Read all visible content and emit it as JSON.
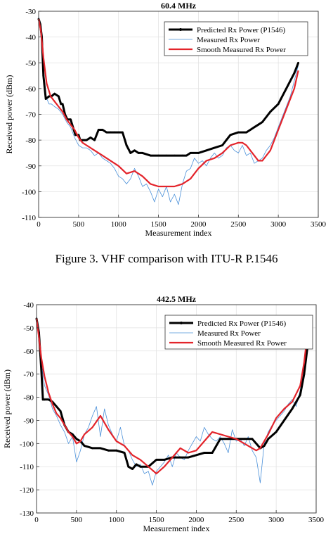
{
  "caption": "Figure 3.    VHF comparison with ITU-R P.1546",
  "chart_data": [
    {
      "type": "line",
      "title": "60.4 MHz",
      "xlabel": "Measurement index",
      "ylabel": "Received power (dBm)",
      "xlim": [
        0,
        3500
      ],
      "ylim": [
        -110,
        -30
      ],
      "xticks": [
        0,
        500,
        1000,
        1500,
        2000,
        2500,
        3000,
        3500
      ],
      "yticks": [
        -30,
        -40,
        -50,
        -60,
        -70,
        -80,
        -90,
        -100,
        -110
      ],
      "grid": true,
      "legend_position": "top-right",
      "series": [
        {
          "name": "Predicted Rx Power (P1546)",
          "color": "#000000",
          "x": [
            0,
            20,
            40,
            60,
            90,
            130,
            160,
            200,
            250,
            280,
            300,
            330,
            360,
            400,
            430,
            460,
            500,
            520,
            600,
            650,
            700,
            750,
            800,
            850,
            900,
            950,
            1000,
            1050,
            1080,
            1100,
            1150,
            1200,
            1250,
            1300,
            1400,
            1500,
            1600,
            1700,
            1800,
            1850,
            1900,
            2000,
            2100,
            2200,
            2300,
            2350,
            2400,
            2500,
            2600,
            2650,
            2700,
            2750,
            2800,
            2900,
            3000,
            3100,
            3200,
            3250
          ],
          "y": [
            -33,
            -35,
            -40,
            -55,
            -64,
            -63,
            -63,
            -62,
            -63,
            -66,
            -66,
            -70,
            -72,
            -72,
            -75,
            -78,
            -78,
            -80,
            -80,
            -79,
            -80,
            -76,
            -76,
            -77,
            -77,
            -77,
            -77,
            -77,
            -80,
            -82,
            -85,
            -84,
            -85,
            -85,
            -86,
            -86,
            -86,
            -86,
            -86,
            -86,
            -85,
            -85,
            -84,
            -83,
            -82,
            -80,
            -78,
            -77,
            -77,
            -76,
            -75,
            -74,
            -73,
            -69,
            -66,
            -60,
            -54,
            -50
          ]
        },
        {
          "name": "Measured Rx Power",
          "color": "#4a90d9",
          "x": [
            0,
            20,
            40,
            60,
            90,
            130,
            160,
            200,
            250,
            300,
            350,
            400,
            450,
            500,
            550,
            600,
            650,
            700,
            750,
            800,
            850,
            900,
            950,
            1000,
            1050,
            1100,
            1150,
            1200,
            1250,
            1300,
            1350,
            1400,
            1450,
            1500,
            1550,
            1600,
            1650,
            1700,
            1750,
            1800,
            1850,
            1900,
            1950,
            2000,
            2050,
            2100,
            2150,
            2200,
            2250,
            2300,
            2350,
            2400,
            2450,
            2500,
            2550,
            2600,
            2650,
            2700,
            2750,
            2800,
            2850,
            2900,
            2950,
            3000,
            3050,
            3100,
            3150,
            3200,
            3250
          ],
          "y": [
            -32,
            -36,
            -42,
            -56,
            -63,
            -66,
            -66,
            -67,
            -68,
            -70,
            -73,
            -75,
            -79,
            -82,
            -83,
            -83,
            -84,
            -86,
            -85,
            -87,
            -88,
            -89,
            -91,
            -94,
            -95,
            -97,
            -95,
            -91,
            -94,
            -98,
            -97,
            -100,
            -104,
            -99,
            -102,
            -98,
            -104,
            -101,
            -105,
            -97,
            -92,
            -91,
            -87,
            -89,
            -88,
            -90,
            -87,
            -85,
            -87,
            -86,
            -83,
            -82,
            -84,
            -85,
            -82,
            -86,
            -85,
            -89,
            -88,
            -87,
            -84,
            -82,
            -79,
            -75,
            -71,
            -67,
            -63,
            -57,
            -51
          ]
        },
        {
          "name": "Smooth Measured Rx Power",
          "color": "#e3242b",
          "x": [
            0,
            30,
            60,
            100,
            150,
            200,
            250,
            300,
            350,
            400,
            450,
            500,
            550,
            600,
            700,
            800,
            900,
            1000,
            1100,
            1200,
            1300,
            1400,
            1500,
            1600,
            1700,
            1800,
            1900,
            2000,
            2100,
            2200,
            2300,
            2400,
            2500,
            2550,
            2600,
            2700,
            2750,
            2800,
            2900,
            3000,
            3100,
            3200,
            3250
          ],
          "y": [
            -33,
            -38,
            -48,
            -58,
            -63,
            -65,
            -67,
            -69,
            -72,
            -74,
            -76,
            -79,
            -81,
            -82,
            -84,
            -86,
            -88,
            -90,
            -93,
            -92,
            -94,
            -97,
            -98,
            -98,
            -98,
            -97,
            -95,
            -91,
            -88,
            -87,
            -85,
            -82,
            -81,
            -81,
            -82,
            -86,
            -88,
            -88,
            -84,
            -76,
            -68,
            -60,
            -53
          ]
        }
      ]
    },
    {
      "type": "line",
      "title": "442.5 MHz",
      "xlabel": "Measurement index",
      "ylabel": "Received power (dBm)",
      "xlim": [
        0,
        3500
      ],
      "ylim": [
        -130,
        -40
      ],
      "xticks": [
        0,
        500,
        1000,
        1500,
        2000,
        2500,
        3000,
        3500
      ],
      "yticks": [
        -40,
        -50,
        -60,
        -70,
        -80,
        -90,
        -100,
        -110,
        -120,
        -130
      ],
      "grid": true,
      "legend_position": "top-right",
      "series": [
        {
          "name": "Predicted Rx Power (P1546)",
          "color": "#000000",
          "x": [
            0,
            30,
            60,
            80,
            100,
            150,
            200,
            250,
            300,
            350,
            400,
            450,
            500,
            550,
            600,
            700,
            800,
            900,
            1000,
            1100,
            1150,
            1200,
            1250,
            1300,
            1400,
            1500,
            1600,
            1700,
            1800,
            1900,
            2000,
            2100,
            2200,
            2300,
            2400,
            2500,
            2600,
            2700,
            2800,
            2850,
            2900,
            3000,
            3100,
            3200,
            3300,
            3350,
            3400
          ],
          "y": [
            -46,
            -52,
            -68,
            -81,
            -81,
            -81,
            -82,
            -84,
            -86,
            -92,
            -95,
            -96,
            -98,
            -99,
            -101,
            -102,
            -102,
            -103,
            -103,
            -104,
            -110,
            -111,
            -109,
            -110,
            -110,
            -107,
            -107,
            -106,
            -106,
            -106,
            -105,
            -104,
            -104,
            -98,
            -98,
            -98,
            -98,
            -98,
            -102,
            -101,
            -98,
            -95,
            -90,
            -85,
            -79,
            -70,
            -56
          ]
        },
        {
          "name": "Measured Rx Power",
          "color": "#4a90d9",
          "x": [
            0,
            30,
            60,
            100,
            150,
            200,
            250,
            300,
            350,
            400,
            450,
            500,
            550,
            600,
            650,
            700,
            750,
            800,
            850,
            900,
            950,
            1000,
            1050,
            1100,
            1150,
            1200,
            1250,
            1300,
            1350,
            1400,
            1450,
            1500,
            1550,
            1600,
            1650,
            1700,
            1750,
            1800,
            1850,
            1900,
            1950,
            2000,
            2050,
            2100,
            2150,
            2200,
            2250,
            2300,
            2350,
            2400,
            2450,
            2500,
            2550,
            2600,
            2650,
            2700,
            2750,
            2800,
            2850,
            2900,
            2950,
            3000,
            3050,
            3100,
            3150,
            3200,
            3250,
            3300,
            3350,
            3400
          ],
          "y": [
            -45,
            -53,
            -65,
            -75,
            -79,
            -85,
            -88,
            -92,
            -95,
            -100,
            -97,
            -108,
            -103,
            -96,
            -93,
            -88,
            -84,
            -97,
            -85,
            -92,
            -96,
            -99,
            -93,
            -101,
            -103,
            -107,
            -110,
            -109,
            -113,
            -112,
            -118,
            -112,
            -110,
            -108,
            -105,
            -110,
            -104,
            -106,
            -107,
            -103,
            -100,
            -97,
            -99,
            -93,
            -96,
            -98,
            -99,
            -97,
            -100,
            -104,
            -94,
            -99,
            -98,
            -101,
            -97,
            -103,
            -106,
            -117,
            -100,
            -95,
            -92,
            -90,
            -88,
            -86,
            -83,
            -81,
            -84,
            -77,
            -68,
            -54
          ]
        },
        {
          "name": "Smooth Measured Rx Power",
          "color": "#e3242b",
          "x": [
            0,
            30,
            60,
            100,
            150,
            200,
            250,
            300,
            350,
            400,
            450,
            500,
            550,
            600,
            700,
            800,
            900,
            1000,
            1100,
            1200,
            1300,
            1400,
            1500,
            1600,
            1700,
            1800,
            1900,
            2000,
            2100,
            2200,
            2300,
            2400,
            2500,
            2600,
            2700,
            2750,
            2800,
            2900,
            3000,
            3100,
            3200,
            3300,
            3350,
            3400
          ],
          "y": [
            -46,
            -54,
            -63,
            -71,
            -78,
            -83,
            -87,
            -89,
            -92,
            -95,
            -97,
            -100,
            -99,
            -96,
            -93,
            -88,
            -94,
            -99,
            -101,
            -105,
            -107,
            -110,
            -113,
            -110,
            -106,
            -102,
            -104,
            -103,
            -99,
            -95,
            -96,
            -97,
            -98,
            -100,
            -102,
            -103,
            -102,
            -96,
            -89,
            -85,
            -82,
            -75,
            -65,
            -50
          ]
        }
      ]
    }
  ]
}
